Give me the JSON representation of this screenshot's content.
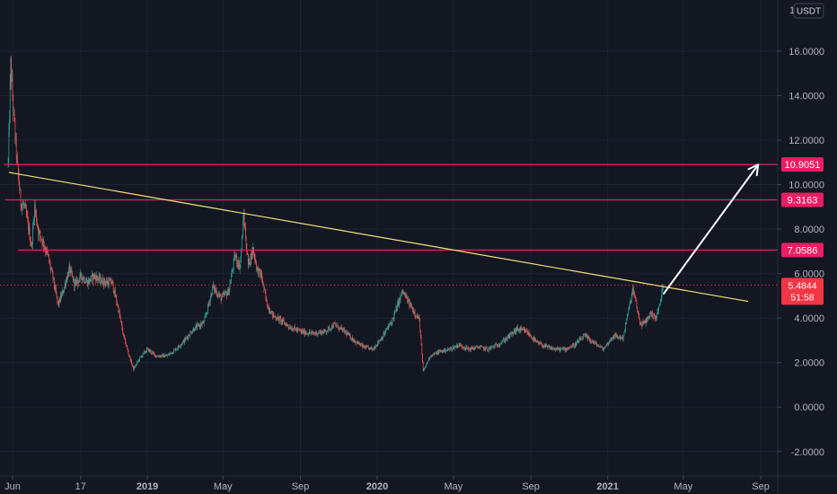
{
  "chart_data": {
    "type": "candlestick",
    "quote_currency": "USDT",
    "y_axis": {
      "ticks": [
        16,
        14,
        12,
        10,
        8,
        6,
        4,
        2,
        0,
        -2
      ],
      "tick_labels": [
        "16.0000",
        "14.0000",
        "12.0000",
        "10.0000",
        "8.0000",
        "6.0000",
        "4.0000",
        "2.0000",
        "0.0000",
        "-2.0000"
      ],
      "top_partial_label": "1",
      "range": [
        -3.1,
        18.3
      ]
    },
    "x_axis": {
      "range": [
        "2018-05-12",
        "2021-09-28"
      ],
      "ticks": [
        {
          "date": "2018-06-01",
          "label": "Jun",
          "bold": false
        },
        {
          "date": "2018-09-17",
          "label": "17",
          "bold": false
        },
        {
          "date": "2019-01-01",
          "label": "2019",
          "bold": true
        },
        {
          "date": "2019-05-01",
          "label": "May",
          "bold": false
        },
        {
          "date": "2019-09-01",
          "label": "Sep",
          "bold": false
        },
        {
          "date": "2020-01-01",
          "label": "2020",
          "bold": true
        },
        {
          "date": "2020-05-01",
          "label": "May",
          "bold": false
        },
        {
          "date": "2020-09-01",
          "label": "Sep",
          "bold": false
        },
        {
          "date": "2021-01-01",
          "label": "2021",
          "bold": true
        },
        {
          "date": "2021-05-01",
          "label": "May",
          "bold": false
        },
        {
          "date": "2021-09-01",
          "label": "Sep",
          "bold": false
        }
      ]
    },
    "price_path": [
      [
        "2018-05-25",
        11.0
      ],
      [
        "2018-05-29",
        15.4
      ],
      [
        "2018-06-03",
        13.0
      ],
      [
        "2018-06-08",
        11.0
      ],
      [
        "2018-06-14",
        9.2
      ],
      [
        "2018-06-20",
        9.0
      ],
      [
        "2018-06-26",
        8.1
      ],
      [
        "2018-07-01",
        7.2
      ],
      [
        "2018-07-06",
        9.0
      ],
      [
        "2018-07-12",
        7.9
      ],
      [
        "2018-07-18",
        7.5
      ],
      [
        "2018-07-26",
        6.9
      ],
      [
        "2018-08-04",
        5.8
      ],
      [
        "2018-08-12",
        4.6
      ],
      [
        "2018-08-20",
        5.2
      ],
      [
        "2018-08-30",
        6.2
      ],
      [
        "2018-09-08",
        5.5
      ],
      [
        "2018-09-18",
        5.9
      ],
      [
        "2018-09-28",
        5.6
      ],
      [
        "2018-10-08",
        5.9
      ],
      [
        "2018-10-18",
        5.7
      ],
      [
        "2018-10-28",
        5.6
      ],
      [
        "2018-11-06",
        5.6
      ],
      [
        "2018-11-16",
        4.4
      ],
      [
        "2018-11-24",
        3.2
      ],
      [
        "2018-12-02",
        2.4
      ],
      [
        "2018-12-10",
        1.7
      ],
      [
        "2018-12-20",
        2.2
      ],
      [
        "2019-01-01",
        2.6
      ],
      [
        "2019-01-15",
        2.3
      ],
      [
        "2019-02-01",
        2.3
      ],
      [
        "2019-02-15",
        2.6
      ],
      [
        "2019-03-01",
        3.0
      ],
      [
        "2019-03-15",
        3.5
      ],
      [
        "2019-04-01",
        3.8
      ],
      [
        "2019-04-15",
        5.4
      ],
      [
        "2019-04-28",
        4.9
      ],
      [
        "2019-05-10",
        5.2
      ],
      [
        "2019-05-20",
        6.8
      ],
      [
        "2019-05-28",
        6.3
      ],
      [
        "2019-06-03",
        8.6
      ],
      [
        "2019-06-10",
        6.4
      ],
      [
        "2019-06-18",
        7.1
      ],
      [
        "2019-06-24",
        6.2
      ],
      [
        "2019-07-01",
        5.9
      ],
      [
        "2019-07-10",
        4.6
      ],
      [
        "2019-07-20",
        4.1
      ],
      [
        "2019-08-01",
        3.9
      ],
      [
        "2019-08-15",
        3.6
      ],
      [
        "2019-09-01",
        3.4
      ],
      [
        "2019-09-20",
        3.3
      ],
      [
        "2019-10-10",
        3.4
      ],
      [
        "2019-10-25",
        3.7
      ],
      [
        "2019-11-10",
        3.4
      ],
      [
        "2019-11-25",
        3.0
      ],
      [
        "2019-12-10",
        2.7
      ],
      [
        "2019-12-25",
        2.6
      ],
      [
        "2020-01-10",
        3.2
      ],
      [
        "2020-01-25",
        3.9
      ],
      [
        "2020-02-10",
        5.2
      ],
      [
        "2020-02-22",
        4.6
      ],
      [
        "2020-03-08",
        3.9
      ],
      [
        "2020-03-14",
        1.6
      ],
      [
        "2020-03-25",
        2.3
      ],
      [
        "2020-04-10",
        2.5
      ],
      [
        "2020-04-25",
        2.6
      ],
      [
        "2020-05-10",
        2.8
      ],
      [
        "2020-05-25",
        2.6
      ],
      [
        "2020-06-10",
        2.7
      ],
      [
        "2020-06-25",
        2.6
      ],
      [
        "2020-07-10",
        2.8
      ],
      [
        "2020-07-25",
        3.1
      ],
      [
        "2020-08-10",
        3.5
      ],
      [
        "2020-08-25",
        3.4
      ],
      [
        "2020-09-10",
        2.9
      ],
      [
        "2020-09-25",
        2.7
      ],
      [
        "2020-10-10",
        2.6
      ],
      [
        "2020-10-25",
        2.6
      ],
      [
        "2020-11-10",
        2.8
      ],
      [
        "2020-11-25",
        3.2
      ],
      [
        "2020-12-10",
        2.9
      ],
      [
        "2020-12-25",
        2.6
      ],
      [
        "2021-01-10",
        3.2
      ],
      [
        "2021-01-25",
        3.1
      ],
      [
        "2021-02-05",
        4.6
      ],
      [
        "2021-02-10",
        5.3
      ],
      [
        "2021-02-16",
        4.5
      ],
      [
        "2021-02-22",
        3.7
      ],
      [
        "2021-03-01",
        3.8
      ],
      [
        "2021-03-10",
        4.2
      ],
      [
        "2021-03-18",
        4.0
      ],
      [
        "2021-03-24",
        4.5
      ],
      [
        "2021-03-30",
        5.48
      ]
    ],
    "current_price": {
      "label": "5.4844",
      "countdown": "51:58",
      "value": 5.4844
    },
    "trendline": {
      "start": [
        "2018-05-26",
        10.55
      ],
      "end": [
        "2021-08-12",
        4.75
      ]
    },
    "arrow": {
      "start": [
        "2021-03-31",
        5.1
      ],
      "end": [
        "2021-08-28",
        10.9
      ]
    },
    "levels": [
      {
        "value": 10.9051,
        "label": "10.9051",
        "start": "2018-05-18"
      },
      {
        "value": 9.3163,
        "label": "9.3163",
        "start": "2018-05-20"
      },
      {
        "value": 7.0586,
        "label": "7.0586",
        "start": "2018-06-10"
      }
    ],
    "colors": {
      "background": "#131722",
      "grid": "#1f2330",
      "up": "#26a69a",
      "down": "#ef5350",
      "level": "#e91e63",
      "trendline": "#f5e27a",
      "arrow": "#ffffff",
      "current_price": "#f23645",
      "axis_text": "#b2b5be"
    }
  }
}
